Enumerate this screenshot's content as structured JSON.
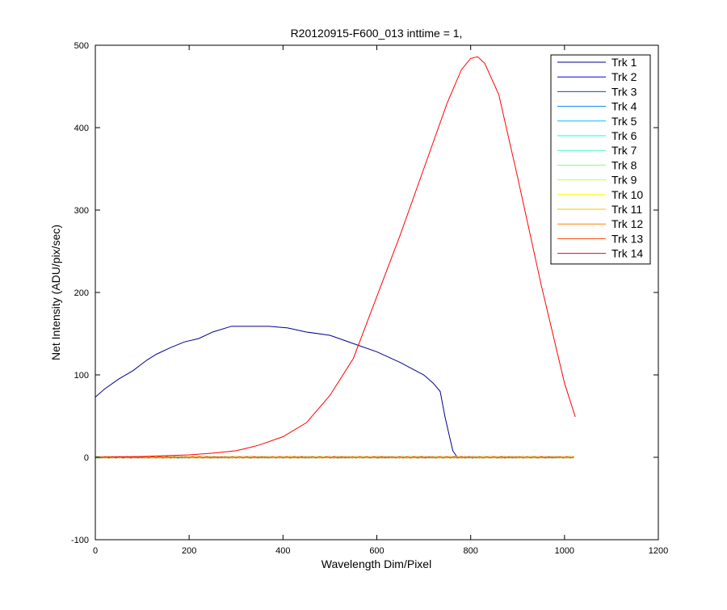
{
  "chart_data": {
    "type": "line",
    "title": "R20120915-F600_013 inttime = 1,",
    "xlabel": "Wavelength Dim/Pixel",
    "ylabel": "Net Intensity (ADU/pix/sec)",
    "xlim": [
      0,
      1200
    ],
    "ylim": [
      -100,
      500
    ],
    "xticks": [
      0,
      200,
      400,
      600,
      800,
      1000,
      1200
    ],
    "yticks": [
      -100,
      0,
      100,
      200,
      300,
      400,
      500
    ],
    "grid": false,
    "legend_position": "top-right",
    "series": [
      {
        "name": "Trk 1",
        "color": "#00008f",
        "x": [
          0,
          20,
          50,
          80,
          110,
          130,
          160,
          190,
          220,
          250,
          290,
          330,
          370,
          410,
          450,
          500,
          550,
          600,
          650,
          700,
          720,
          735,
          745,
          755,
          762,
          770
        ],
        "y": [
          73,
          83,
          95,
          105,
          118,
          125,
          133,
          140,
          144,
          152,
          159,
          159,
          159,
          157,
          152,
          148,
          138,
          128,
          115,
          100,
          90,
          80,
          50,
          25,
          8,
          1
        ]
      },
      {
        "name": "Trk 2",
        "color": "#0000ff",
        "x": [
          0,
          1023
        ],
        "y": [
          0,
          0
        ]
      },
      {
        "name": "Trk 3",
        "color": "#0040ff",
        "x": [
          0,
          1023
        ],
        "y": [
          0,
          0
        ]
      },
      {
        "name": "Trk 4",
        "color": "#0080ff",
        "x": [
          0,
          1023
        ],
        "y": [
          0,
          0
        ]
      },
      {
        "name": "Trk 5",
        "color": "#00bfff",
        "x": [
          0,
          1023
        ],
        "y": [
          0,
          0
        ]
      },
      {
        "name": "Trk 6",
        "color": "#00ffff",
        "x": [
          0,
          1023
        ],
        "y": [
          0,
          0
        ]
      },
      {
        "name": "Trk 7",
        "color": "#40ffbf",
        "x": [
          0,
          1023
        ],
        "y": [
          0,
          0
        ]
      },
      {
        "name": "Trk 8",
        "color": "#80ff80",
        "x": [
          0,
          1023
        ],
        "y": [
          0,
          0
        ]
      },
      {
        "name": "Trk 9",
        "color": "#bfff40",
        "x": [
          0,
          1023
        ],
        "y": [
          0,
          0
        ]
      },
      {
        "name": "Trk 10",
        "color": "#ffff00",
        "x": [
          0,
          1023
        ],
        "y": [
          0,
          0
        ]
      },
      {
        "name": "Trk 11",
        "color": "#ffbf00",
        "x": [
          0,
          1023
        ],
        "y": [
          0,
          0
        ]
      },
      {
        "name": "Trk 12",
        "color": "#ff8000",
        "x": [
          0,
          1023
        ],
        "y": [
          0,
          0
        ]
      },
      {
        "name": "Trk 13",
        "color": "#ff4000",
        "x": [
          0,
          1023
        ],
        "y": [
          0,
          0
        ]
      },
      {
        "name": "Trk 14",
        "color": "#ff0000",
        "x": [
          0,
          100,
          200,
          250,
          300,
          330,
          350,
          400,
          450,
          500,
          550,
          600,
          650,
          700,
          750,
          780,
          800,
          815,
          830,
          860,
          900,
          950,
          1000,
          1023
        ],
        "y": [
          0,
          1,
          3,
          5,
          8,
          12,
          15,
          25,
          42,
          75,
          120,
          195,
          270,
          350,
          430,
          470,
          484,
          486,
          478,
          440,
          340,
          210,
          90,
          49
        ]
      }
    ]
  }
}
